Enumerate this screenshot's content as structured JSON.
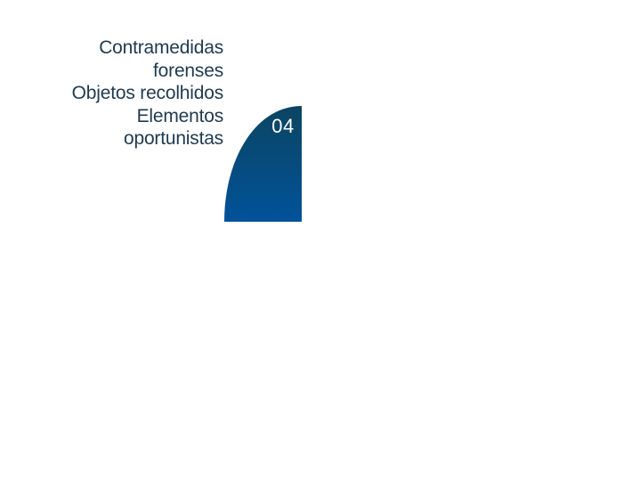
{
  "labels": [
    "Contramedidas forenses",
    "Objetos recolhidos",
    "Elementos oportunistas"
  ],
  "step": {
    "number": "04"
  },
  "colors": {
    "text": "#1f3a4f",
    "shape_top": "#0c4561",
    "shape_bottom": "#00529a",
    "number": "#ffffff"
  }
}
